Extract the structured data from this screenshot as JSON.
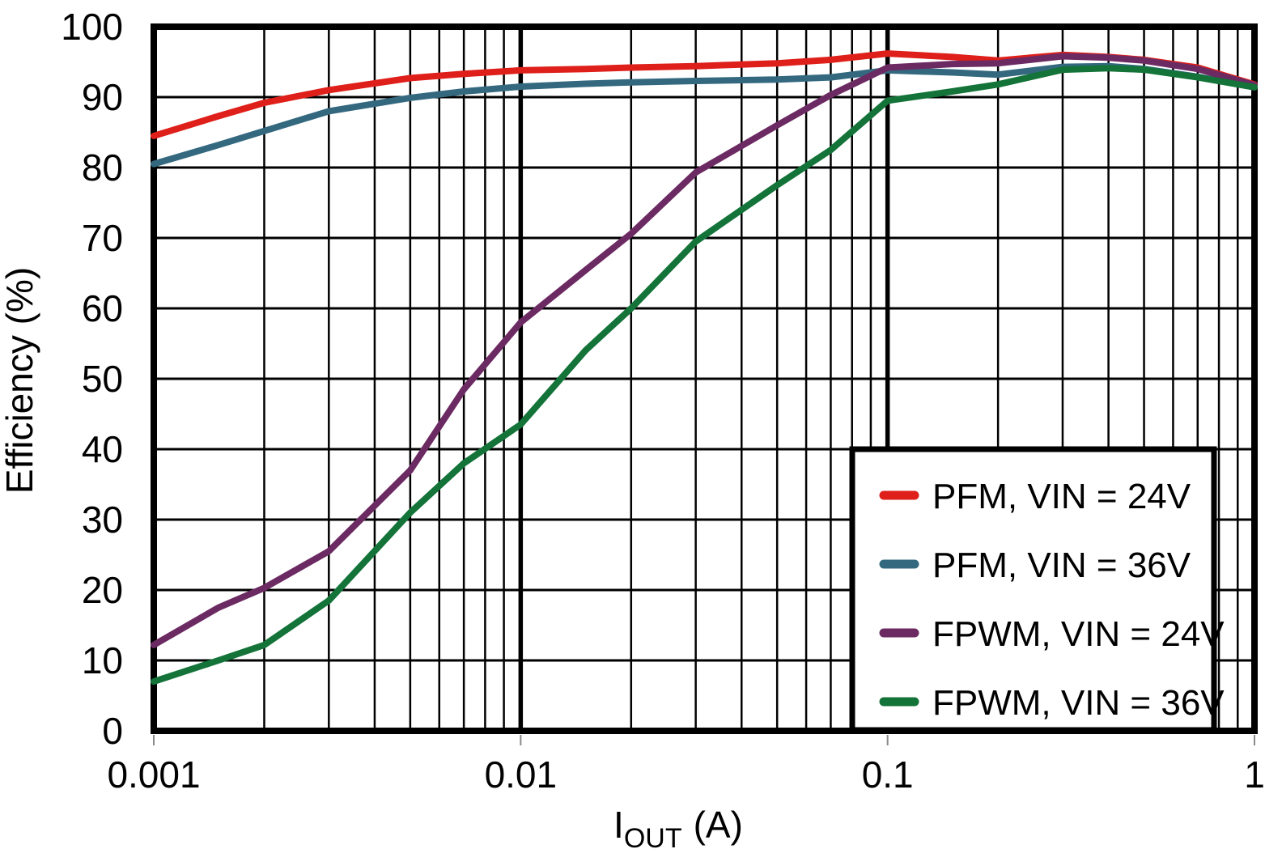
{
  "chart_data": {
    "type": "line",
    "title": "",
    "ylabel": "Efficiency (%)",
    "xlabel_main": "I",
    "xlabel_sub": "OUT",
    "xlabel_unit": "(A)",
    "x_scale": "log",
    "xlim": [
      0.001,
      1
    ],
    "ylim": [
      0,
      100
    ],
    "grid": {
      "horizontal_step": 10,
      "vertical": "log-decades-with-minors",
      "color": "#000000"
    },
    "legend_position": "bottom-right",
    "y_ticks": [
      {
        "value": 0,
        "label": "0"
      },
      {
        "value": 10,
        "label": "10"
      },
      {
        "value": 20,
        "label": "20"
      },
      {
        "value": 30,
        "label": "30"
      },
      {
        "value": 40,
        "label": "40"
      },
      {
        "value": 50,
        "label": "50"
      },
      {
        "value": 60,
        "label": "60"
      },
      {
        "value": 70,
        "label": "70"
      },
      {
        "value": 80,
        "label": "80"
      },
      {
        "value": 90,
        "label": "90"
      },
      {
        "value": 100,
        "label": "100"
      }
    ],
    "x_ticks": [
      {
        "value": 0.001,
        "label": "0.001"
      },
      {
        "value": 0.01,
        "label": "0.01"
      },
      {
        "value": 0.1,
        "label": "0.1"
      },
      {
        "value": 1,
        "label": "1"
      }
    ],
    "x": [
      0.001,
      0.0015,
      0.002,
      0.003,
      0.005,
      0.007,
      0.01,
      0.015,
      0.02,
      0.03,
      0.05,
      0.07,
      0.1,
      0.15,
      0.2,
      0.3,
      0.4,
      0.5,
      0.7,
      1.0
    ],
    "series": [
      {
        "name": "PFM, VIN = 24V",
        "color": "#DE1F1A",
        "values": [
          84.5,
          87.3,
          89.2,
          91.0,
          92.7,
          93.3,
          93.8,
          94.0,
          94.2,
          94.4,
          94.8,
          95.3,
          96.2,
          95.7,
          95.2,
          96.0,
          95.7,
          95.3,
          94.2,
          91.8
        ]
      },
      {
        "name": "PFM, VIN = 36V",
        "color": "#33687F",
        "values": [
          80.5,
          83.2,
          85.2,
          88.0,
          89.9,
          90.8,
          91.5,
          91.9,
          92.1,
          92.3,
          92.5,
          92.8,
          93.8,
          93.5,
          93.2,
          94.3,
          94.4,
          94.0,
          92.9,
          91.4
        ]
      },
      {
        "name": "FPWM, VIN = 24V",
        "color": "#6C2A63",
        "values": [
          12.2,
          17.5,
          20.3,
          25.5,
          37.0,
          48.5,
          58.0,
          65.4,
          70.6,
          79.3,
          86.0,
          90.3,
          94.2,
          94.7,
          94.8,
          95.8,
          95.6,
          95.2,
          94.0,
          91.7
        ]
      },
      {
        "name": "FPWM, VIN = 36V",
        "color": "#137338",
        "values": [
          7.0,
          10.0,
          12.2,
          18.5,
          31.0,
          38.0,
          43.5,
          54.0,
          60.0,
          69.5,
          77.5,
          82.5,
          89.5,
          90.8,
          91.8,
          93.9,
          94.1,
          93.9,
          92.8,
          91.4
        ]
      }
    ]
  }
}
